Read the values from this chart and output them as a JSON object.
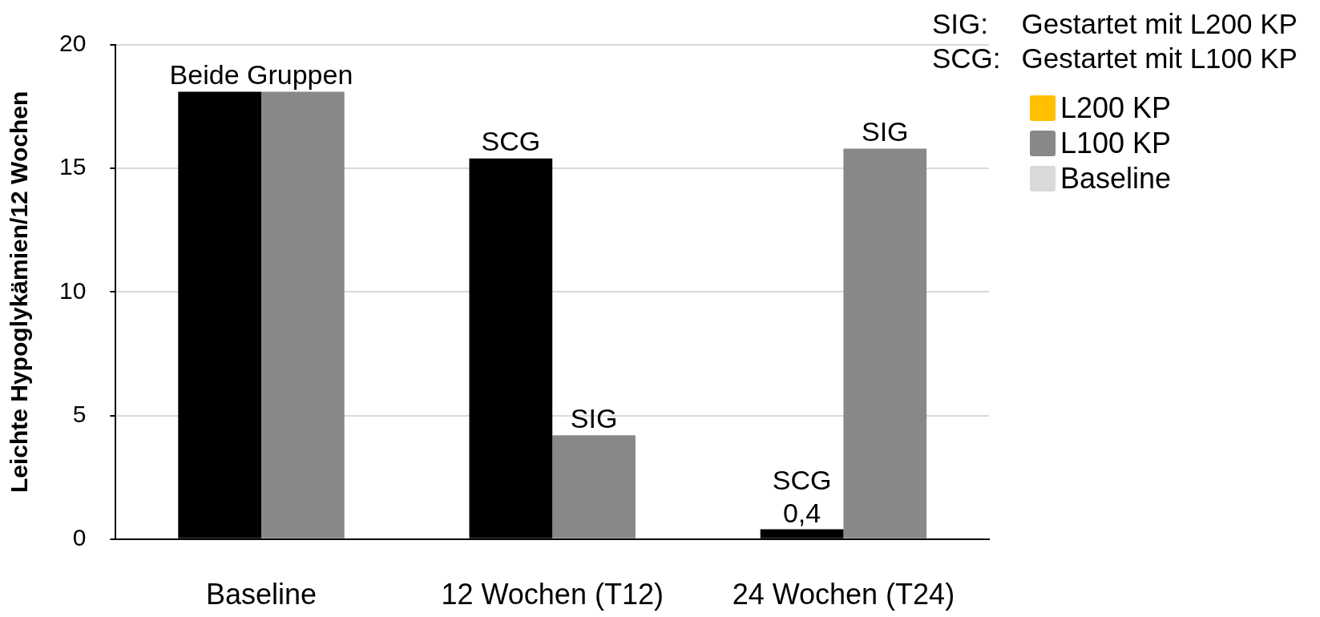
{
  "chart_data": {
    "type": "bar",
    "ylabel": "Leichte Hypoglykämien/12 Wochen",
    "categories": [
      "Baseline",
      "12 Wochen (T12)",
      "24 Wochen (T24)"
    ],
    "series": [
      {
        "name": "L200 KP",
        "color": "#ffc000",
        "values": [
          null,
          null,
          null
        ]
      },
      {
        "color": "#000000",
        "values": [
          18.1,
          15.4,
          0.4
        ],
        "value_labels": [
          null,
          null,
          "0,4"
        ]
      },
      {
        "name": "L100 KP",
        "color": "#888888",
        "values": [
          18.1,
          4.2,
          15.8
        ]
      },
      {
        "name": "Baseline",
        "color": "#d9d9d9",
        "values": [
          null,
          null,
          null
        ]
      }
    ],
    "ylim": [
      0,
      20
    ],
    "yticks": [
      0,
      5,
      10,
      15,
      20
    ],
    "grid": "y",
    "legend": "top right",
    "annotations": [
      "SIG: Gestartet mit L200 KP",
      "SCG: Gestartet mit L100 KP",
      {
        "text": "Beide Gruppen",
        "x": "Baseline",
        "y": 18.1
      },
      {
        "text": "SCG",
        "x": "12 Wochen (T12)",
        "y": 15.4
      },
      {
        "text": "SIG",
        "x": "12 Wochen (T12)",
        "y": 4.2
      },
      {
        "text": "SCG",
        "x": "24 Wochen (T24)",
        "y": 0.4
      },
      {
        "text": "SIG",
        "x": "24 Wochen (T24)",
        "y": 15.8
      }
    ]
  }
}
